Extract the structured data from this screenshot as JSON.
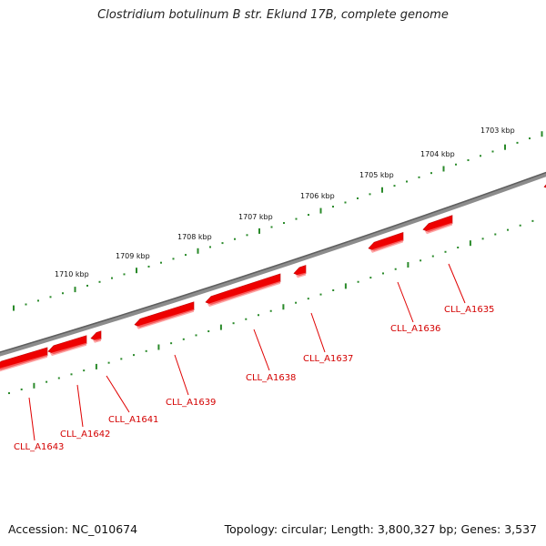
{
  "title": "Clostridium botulinum B str. Eklund 17B, complete genome",
  "colors": {
    "genome": "#7a7a7a",
    "ticks": "#2a8a2a",
    "genes": "#ee0000",
    "gene_label": "#d40000"
  },
  "kbp_labels": [
    "1703 kbp",
    "1704 kbp",
    "1705 kbp",
    "1706 kbp",
    "1707 kbp",
    "1708 kbp",
    "1709 kbp",
    "1710 kbp"
  ],
  "genes": [
    "CLL_A1635",
    "CLL_A1636",
    "CLL_A1637",
    "CLL_A1638",
    "CLL_A1639",
    "CLL_A1641",
    "CLL_A1642",
    "CLL_A1643"
  ],
  "footer": {
    "accession": "Accession: NC_010674",
    "summary": "Topology: circular; Length: 3,800,327 bp; Genes: 3,537"
  }
}
